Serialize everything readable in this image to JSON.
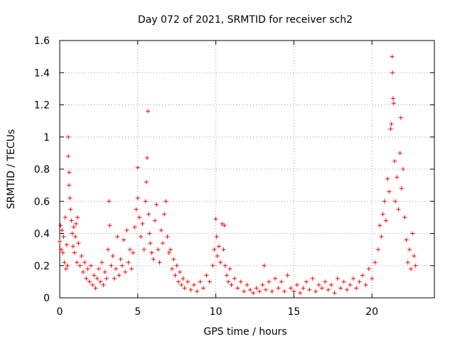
{
  "chart_data": {
    "type": "scatter",
    "title": "Day 072 of 2021, SRMTID for receiver sch2",
    "xlabel": "GPS time / hours",
    "ylabel": "SRMTID / TECUs",
    "xlim": [
      0,
      24
    ],
    "ylim": [
      0,
      1.6
    ],
    "x_ticks": [
      "0",
      "5",
      "10",
      "15",
      "20"
    ],
    "y_ticks": [
      "0",
      "0.2",
      "0.4",
      "0.6",
      "0.8",
      "1",
      "1.2",
      "1.4",
      "1.6"
    ],
    "grid": true,
    "marker": "+",
    "color": "#ff0000",
    "series": [
      {
        "name": "sch2",
        "points": [
          [
            0.0,
            0.35
          ],
          [
            0.05,
            0.45
          ],
          [
            0.1,
            0.3
          ],
          [
            0.15,
            0.42
          ],
          [
            0.2,
            0.28
          ],
          [
            0.25,
            0.38
          ],
          [
            0.3,
            0.22
          ],
          [
            0.35,
            0.5
          ],
          [
            0.4,
            0.18
          ],
          [
            0.45,
            0.33
          ],
          [
            0.5,
            0.2
          ],
          [
            0.55,
            1.0
          ],
          [
            0.55,
            0.88
          ],
          [
            0.6,
            0.78
          ],
          [
            0.6,
            0.7
          ],
          [
            0.65,
            0.62
          ],
          [
            0.7,
            0.55
          ],
          [
            0.75,
            0.48
          ],
          [
            0.8,
            0.4
          ],
          [
            0.85,
            0.32
          ],
          [
            0.9,
            0.44
          ],
          [
            0.95,
            0.28
          ],
          [
            1.0,
            0.38
          ],
          [
            1.05,
            0.46
          ],
          [
            1.1,
            0.22
          ],
          [
            1.15,
            0.5
          ],
          [
            1.2,
            0.34
          ],
          [
            1.3,
            0.2
          ],
          [
            1.4,
            0.26
          ],
          [
            1.5,
            0.16
          ],
          [
            1.6,
            0.22
          ],
          [
            1.7,
            0.12
          ],
          [
            1.8,
            0.18
          ],
          [
            1.9,
            0.1
          ],
          [
            2.0,
            0.2
          ],
          [
            2.1,
            0.08
          ],
          [
            2.2,
            0.14
          ],
          [
            2.3,
            0.06
          ],
          [
            2.4,
            0.12
          ],
          [
            2.5,
            0.18
          ],
          [
            2.6,
            0.1
          ],
          [
            2.7,
            0.22
          ],
          [
            2.8,
            0.08
          ],
          [
            2.9,
            0.16
          ],
          [
            3.0,
            0.12
          ],
          [
            3.1,
            0.3
          ],
          [
            3.15,
            0.6
          ],
          [
            3.2,
            0.45
          ],
          [
            3.3,
            0.2
          ],
          [
            3.4,
            0.26
          ],
          [
            3.5,
            0.12
          ],
          [
            3.6,
            0.18
          ],
          [
            3.7,
            0.38
          ],
          [
            3.8,
            0.14
          ],
          [
            3.9,
            0.24
          ],
          [
            4.0,
            0.2
          ],
          [
            4.1,
            0.36
          ],
          [
            4.2,
            0.16
          ],
          [
            4.3,
            0.42
          ],
          [
            4.4,
            0.22
          ],
          [
            4.5,
            0.3
          ],
          [
            4.6,
            0.18
          ],
          [
            4.7,
            0.28
          ],
          [
            4.8,
            0.44
          ],
          [
            4.9,
            0.55
          ],
          [
            5.0,
            0.62
          ],
          [
            5.0,
            0.81
          ],
          [
            5.1,
            0.5
          ],
          [
            5.2,
            0.38
          ],
          [
            5.3,
            0.46
          ],
          [
            5.4,
            0.3
          ],
          [
            5.5,
            0.6
          ],
          [
            5.55,
            0.72
          ],
          [
            5.6,
            0.87
          ],
          [
            5.65,
            1.16
          ],
          [
            5.7,
            0.52
          ],
          [
            5.75,
            0.4
          ],
          [
            5.8,
            0.34
          ],
          [
            5.9,
            0.28
          ],
          [
            6.0,
            0.24
          ],
          [
            6.1,
            0.48
          ],
          [
            6.2,
            0.58
          ],
          [
            6.3,
            0.3
          ],
          [
            6.4,
            0.22
          ],
          [
            6.5,
            0.42
          ],
          [
            6.6,
            0.34
          ],
          [
            6.7,
            0.52
          ],
          [
            6.8,
            0.6
          ],
          [
            6.9,
            0.38
          ],
          [
            7.0,
            0.28
          ],
          [
            7.1,
            0.3
          ],
          [
            7.2,
            0.18
          ],
          [
            7.3,
            0.24
          ],
          [
            7.4,
            0.14
          ],
          [
            7.5,
            0.2
          ],
          [
            7.6,
            0.1
          ],
          [
            7.7,
            0.16
          ],
          [
            7.8,
            0.08
          ],
          [
            7.9,
            0.12
          ],
          [
            8.0,
            0.06
          ],
          [
            8.2,
            0.1
          ],
          [
            8.4,
            0.05
          ],
          [
            8.6,
            0.08
          ],
          [
            8.8,
            0.04
          ],
          [
            9.0,
            0.1
          ],
          [
            9.2,
            0.06
          ],
          [
            9.4,
            0.14
          ],
          [
            9.6,
            0.1
          ],
          [
            9.8,
            0.2
          ],
          [
            9.9,
            0.3
          ],
          [
            10.0,
            0.49
          ],
          [
            10.05,
            0.38
          ],
          [
            10.1,
            0.26
          ],
          [
            10.2,
            0.32
          ],
          [
            10.3,
            0.22
          ],
          [
            10.4,
            0.46
          ],
          [
            10.5,
            0.3
          ],
          [
            10.55,
            0.45
          ],
          [
            10.6,
            0.2
          ],
          [
            10.7,
            0.14
          ],
          [
            10.8,
            0.1
          ],
          [
            10.9,
            0.18
          ],
          [
            11.0,
            0.08
          ],
          [
            11.2,
            0.12
          ],
          [
            11.4,
            0.06
          ],
          [
            11.6,
            0.1
          ],
          [
            11.8,
            0.04
          ],
          [
            12.0,
            0.08
          ],
          [
            12.2,
            0.05
          ],
          [
            12.4,
            0.03
          ],
          [
            12.6,
            0.06
          ],
          [
            12.8,
            0.04
          ],
          [
            13.0,
            0.08
          ],
          [
            13.1,
            0.2
          ],
          [
            13.2,
            0.05
          ],
          [
            13.4,
            0.1
          ],
          [
            13.6,
            0.04
          ],
          [
            13.8,
            0.12
          ],
          [
            14.0,
            0.06
          ],
          [
            14.2,
            0.1
          ],
          [
            14.4,
            0.04
          ],
          [
            14.6,
            0.14
          ],
          [
            14.8,
            0.06
          ],
          [
            15.0,
            0.04
          ],
          [
            15.2,
            0.08
          ],
          [
            15.4,
            0.03
          ],
          [
            15.6,
            0.06
          ],
          [
            15.8,
            0.1
          ],
          [
            16.0,
            0.05
          ],
          [
            16.2,
            0.12
          ],
          [
            16.4,
            0.04
          ],
          [
            16.6,
            0.08
          ],
          [
            16.8,
            0.06
          ],
          [
            17.0,
            0.1
          ],
          [
            17.2,
            0.05
          ],
          [
            17.4,
            0.08
          ],
          [
            17.6,
            0.03
          ],
          [
            17.8,
            0.12
          ],
          [
            18.0,
            0.06
          ],
          [
            18.2,
            0.1
          ],
          [
            18.4,
            0.05
          ],
          [
            18.6,
            0.08
          ],
          [
            18.8,
            0.12
          ],
          [
            19.0,
            0.06
          ],
          [
            19.2,
            0.1
          ],
          [
            19.4,
            0.14
          ],
          [
            19.6,
            0.08
          ],
          [
            19.8,
            0.18
          ],
          [
            20.0,
            0.12
          ],
          [
            20.2,
            0.22
          ],
          [
            20.4,
            0.3
          ],
          [
            20.5,
            0.45
          ],
          [
            20.6,
            0.38
          ],
          [
            20.7,
            0.52
          ],
          [
            20.8,
            0.6
          ],
          [
            20.9,
            0.48
          ],
          [
            21.0,
            0.74
          ],
          [
            21.1,
            0.66
          ],
          [
            21.2,
            1.05
          ],
          [
            21.25,
            1.08
          ],
          [
            21.3,
            1.5
          ],
          [
            21.32,
            1.4
          ],
          [
            21.35,
            1.24
          ],
          [
            21.4,
            1.21
          ],
          [
            21.45,
            0.85
          ],
          [
            21.5,
            0.6
          ],
          [
            21.6,
            0.75
          ],
          [
            21.7,
            0.55
          ],
          [
            21.8,
            0.9
          ],
          [
            21.85,
            1.12
          ],
          [
            21.9,
            0.68
          ],
          [
            22.0,
            0.8
          ],
          [
            22.1,
            0.5
          ],
          [
            22.2,
            0.36
          ],
          [
            22.3,
            0.22
          ],
          [
            22.4,
            0.3
          ],
          [
            22.5,
            0.18
          ],
          [
            22.6,
            0.4
          ],
          [
            22.7,
            0.26
          ],
          [
            22.8,
            0.2
          ]
        ]
      }
    ]
  }
}
